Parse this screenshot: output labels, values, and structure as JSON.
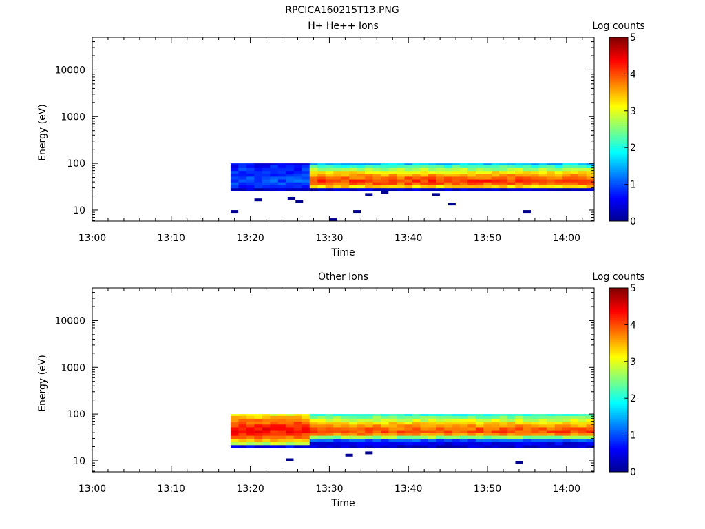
{
  "figure": {
    "title": "RPCICA160215T13.PNG"
  },
  "colormap": [
    "#00008f",
    "#0000ff",
    "#007fff",
    "#00ffff",
    "#7fff7f",
    "#ffff00",
    "#ff7f00",
    "#ff0000",
    "#7f0000"
  ],
  "chart_data": [
    {
      "id": "panel-top",
      "type": "heatmap",
      "title": "H+ He++ Ions",
      "xlabel": "Time",
      "ylabel": "Energy (eV)",
      "x_ticks": [
        "13:00",
        "13:10",
        "13:20",
        "13:30",
        "13:40",
        "13:50",
        "14:00"
      ],
      "x_range_minutes": [
        0,
        63.5
      ],
      "y_scale": "log",
      "y_range": [
        5.8,
        50000
      ],
      "y_ticks": [
        10,
        100,
        1000,
        10000
      ],
      "y_tick_labels": [
        "10",
        "100",
        "1000",
        "10000"
      ],
      "colorbar": {
        "label": "Log counts",
        "range": [
          0,
          5
        ],
        "ticks": [
          "0",
          "1",
          "2",
          "3",
          "4",
          "5"
        ]
      },
      "data_time_range_minutes": [
        17.5,
        63.5
      ],
      "block_boundary_minute": 27,
      "energy_bands": [
        {
          "energy_range_eV": [
            26,
            30
          ],
          "early_log_counts": 0.3,
          "late_log_counts": 0.3
        },
        {
          "energy_range_eV": [
            30,
            35
          ],
          "early_log_counts": 0.8,
          "late_log_counts": 3.3
        },
        {
          "energy_range_eV": [
            35,
            40
          ],
          "early_log_counts": 0.9,
          "late_log_counts": 3.9
        },
        {
          "energy_range_eV": [
            40,
            46
          ],
          "early_log_counts": 1.0,
          "late_log_counts": 4.1
        },
        {
          "energy_range_eV": [
            46,
            53
          ],
          "early_log_counts": 1.0,
          "late_log_counts": 3.9
        },
        {
          "energy_range_eV": [
            53,
            61
          ],
          "early_log_counts": 0.9,
          "late_log_counts": 3.6
        },
        {
          "energy_range_eV": [
            61,
            70
          ],
          "early_log_counts": 0.8,
          "late_log_counts": 3.2
        },
        {
          "energy_range_eV": [
            70,
            81
          ],
          "early_log_counts": 0.8,
          "late_log_counts": 2.7
        },
        {
          "energy_range_eV": [
            81,
            93
          ],
          "early_log_counts": 0.7,
          "late_log_counts": 2.2
        },
        {
          "energy_range_eV": [
            93,
            100
          ],
          "early_log_counts": 0.6,
          "late_log_counts": 1.6
        }
      ],
      "sparse_points": [
        {
          "time_minutes": 18.0,
          "energy_eV": 9.3,
          "log_counts": 0
        },
        {
          "time_minutes": 21.0,
          "energy_eV": 16.5,
          "log_counts": 0
        },
        {
          "time_minutes": 25.2,
          "energy_eV": 17.8,
          "log_counts": 0
        },
        {
          "time_minutes": 26.2,
          "energy_eV": 15.0,
          "log_counts": 0
        },
        {
          "time_minutes": 30.5,
          "energy_eV": 6.2,
          "log_counts": 0
        },
        {
          "time_minutes": 33.5,
          "energy_eV": 9.3,
          "log_counts": 0
        },
        {
          "time_minutes": 35.0,
          "energy_eV": 21.5,
          "log_counts": 0
        },
        {
          "time_minutes": 37.0,
          "energy_eV": 24.0,
          "log_counts": 0
        },
        {
          "time_minutes": 43.5,
          "energy_eV": 21.5,
          "log_counts": 0
        },
        {
          "time_minutes": 45.5,
          "energy_eV": 13.5,
          "log_counts": 0
        },
        {
          "time_minutes": 55.0,
          "energy_eV": 9.3,
          "log_counts": 0
        }
      ]
    },
    {
      "id": "panel-bottom",
      "type": "heatmap",
      "title": "Other Ions",
      "xlabel": "Time",
      "ylabel": "Energy (eV)",
      "x_ticks": [
        "13:00",
        "13:10",
        "13:20",
        "13:30",
        "13:40",
        "13:50",
        "14:00"
      ],
      "x_range_minutes": [
        0,
        63.5
      ],
      "y_scale": "log",
      "y_range": [
        5.8,
        50000
      ],
      "y_ticks": [
        10,
        100,
        1000,
        10000
      ],
      "y_tick_labels": [
        "10",
        "100",
        "1000",
        "10000"
      ],
      "colorbar": {
        "label": "Log counts",
        "range": [
          0,
          5
        ],
        "ticks": [
          "0",
          "1",
          "2",
          "3",
          "4",
          "5"
        ]
      },
      "data_time_range_minutes": [
        17.5,
        63.5
      ],
      "block_boundary_minute": 27,
      "energy_bands": [
        {
          "energy_range_eV": [
            19,
            22
          ],
          "early_log_counts": 0.6,
          "late_log_counts": 0.3
        },
        {
          "energy_range_eV": [
            22,
            26
          ],
          "early_log_counts": 2.8,
          "late_log_counts": 0.5
        },
        {
          "energy_range_eV": [
            26,
            30
          ],
          "early_log_counts": 3.4,
          "late_log_counts": 1.0
        },
        {
          "energy_range_eV": [
            30,
            35
          ],
          "early_log_counts": 3.9,
          "late_log_counts": 2.6
        },
        {
          "energy_range_eV": [
            35,
            40
          ],
          "early_log_counts": 4.2,
          "late_log_counts": 3.7
        },
        {
          "energy_range_eV": [
            40,
            46
          ],
          "early_log_counts": 4.3,
          "late_log_counts": 4.0
        },
        {
          "energy_range_eV": [
            46,
            53
          ],
          "early_log_counts": 4.3,
          "late_log_counts": 3.9
        },
        {
          "energy_range_eV": [
            53,
            61
          ],
          "early_log_counts": 4.1,
          "late_log_counts": 3.6
        },
        {
          "energy_range_eV": [
            61,
            70
          ],
          "early_log_counts": 3.9,
          "late_log_counts": 3.3
        },
        {
          "energy_range_eV": [
            70,
            81
          ],
          "early_log_counts": 3.7,
          "late_log_counts": 2.9
        },
        {
          "energy_range_eV": [
            81,
            93
          ],
          "early_log_counts": 3.4,
          "late_log_counts": 2.5
        },
        {
          "energy_range_eV": [
            93,
            100
          ],
          "early_log_counts": 3.1,
          "late_log_counts": 2.0
        }
      ],
      "sparse_points": [
        {
          "time_minutes": 25.0,
          "energy_eV": 10.5,
          "log_counts": 0
        },
        {
          "time_minutes": 32.5,
          "energy_eV": 13.2,
          "log_counts": 0
        },
        {
          "time_minutes": 35.0,
          "energy_eV": 14.8,
          "log_counts": 0
        },
        {
          "time_minutes": 54.0,
          "energy_eV": 9.2,
          "log_counts": 0
        }
      ]
    }
  ]
}
